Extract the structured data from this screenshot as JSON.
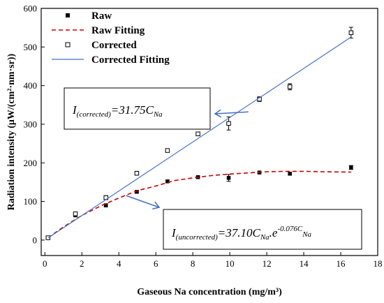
{
  "chart_data": {
    "type": "scatter",
    "xlabel": "Gaseous Na concentration (mg/m³)",
    "ylabel": "Radiation intensity (μW/(cm²·nm·sr))",
    "xlim": [
      -0.2,
      18
    ],
    "ylim": [
      -40,
      600
    ],
    "xticks": [
      0,
      2,
      4,
      6,
      8,
      10,
      12,
      14,
      16,
      18
    ],
    "yticks": [
      0,
      100,
      200,
      300,
      400,
      500,
      600
    ],
    "grid": false,
    "legend_position": "top-left",
    "series": [
      {
        "name": "Raw",
        "kind": "points",
        "marker": "filled-square",
        "color": "#000000",
        "x": [
          0.17,
          1.65,
          3.3,
          4.97,
          6.63,
          8.28,
          9.94,
          11.6,
          13.25,
          16.56
        ],
        "y": [
          6,
          65,
          90,
          125,
          152,
          163,
          161,
          175,
          172,
          188
        ],
        "err": [
          2,
          5,
          4,
          3,
          3,
          2,
          9,
          2,
          4,
          5
        ]
      },
      {
        "name": "Raw Fitting",
        "kind": "curve",
        "style": "dashed",
        "color": "#cc0000",
        "model": "37.10*x*exp(-0.076*x)",
        "x": [
          0.17,
          1,
          2,
          3,
          4,
          5,
          6,
          7,
          8,
          9,
          10,
          11,
          12,
          13,
          14,
          15,
          16.56
        ],
        "y": [
          6,
          34,
          64,
          88,
          109,
          128,
          140,
          154,
          161,
          167,
          171,
          174,
          177,
          178,
          178,
          177,
          176
        ]
      },
      {
        "name": "Corrected",
        "kind": "points",
        "marker": "open-square",
        "color": "#000000",
        "x": [
          0.17,
          1.65,
          3.3,
          4.97,
          6.63,
          8.28,
          9.94,
          11.6,
          13.25,
          16.56
        ],
        "y": [
          6,
          68,
          110,
          173,
          232,
          275,
          302,
          365,
          397,
          537
        ],
        "err": [
          2,
          4,
          5,
          5,
          4,
          5,
          17,
          6,
          8,
          14
        ]
      },
      {
        "name": "Corrected Fitting",
        "kind": "line",
        "style": "solid",
        "color": "#4472c4",
        "model": "31.75*x",
        "x": [
          0.17,
          16.56
        ],
        "y": [
          5.4,
          525.8
        ]
      }
    ],
    "annotations": [
      {
        "id": "corrected",
        "I": "I",
        "sub": "(corrected)",
        "rest": "=31.75C",
        "sub2": "Na",
        "arrow_to": [
          11.0,
          332
        ]
      },
      {
        "id": "uncorrected",
        "I": "I",
        "sub": "(uncorrected)",
        "rest": "=37.10C",
        "sub2": "Na",
        "mid": ".e",
        "sup": "-0.076C",
        "sup_sub": "Na",
        "arrow_to": [
          4.4,
          115
        ]
      }
    ]
  }
}
